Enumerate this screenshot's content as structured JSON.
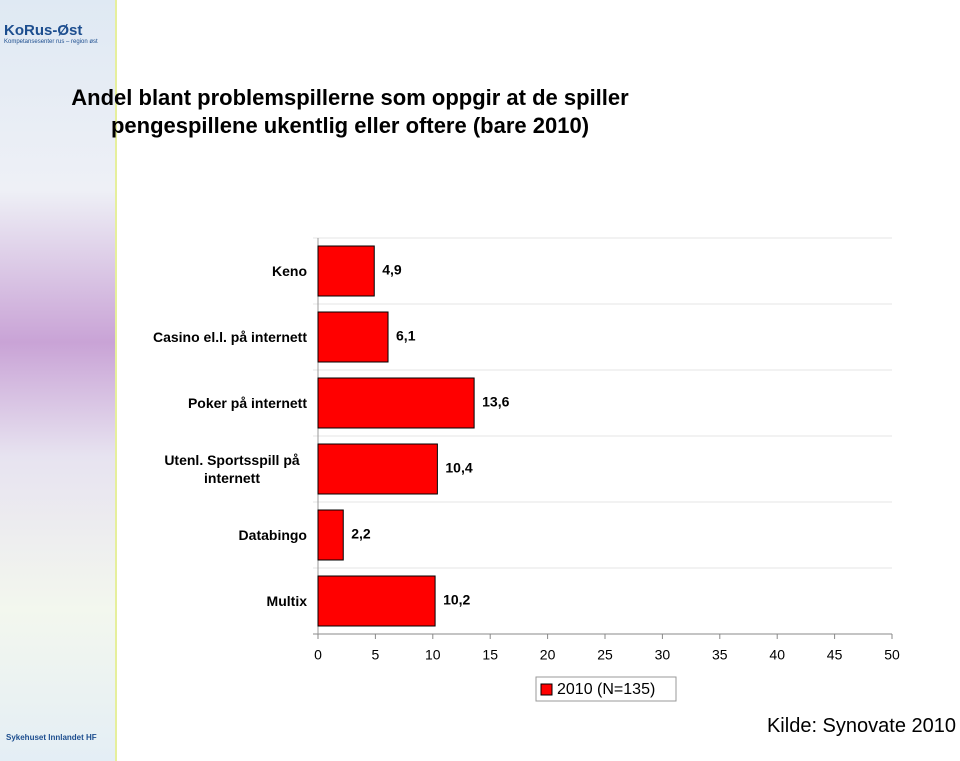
{
  "header_logo": {
    "name": "KoRus-Øst",
    "tagline": "Kompetansesenter rus – region øst"
  },
  "footer_logo": "Sykehuset Innlandet HF",
  "chart_data": {
    "type": "bar",
    "orientation": "horizontal",
    "title": "Andel blant problemspillerne som oppgir at de spiller pengespillene ukentlig eller oftere (bare 2010)",
    "source": "Kilde: Synovate 2010",
    "categories": [
      "Keno",
      "Casino el.l. på internett",
      "Poker på internett",
      "Utenl. Sportsspill på internett",
      "Databingo",
      "Multix"
    ],
    "series": [
      {
        "name": "2010 (N=135)",
        "color": "#ff0000",
        "values": [
          4.9,
          6.1,
          13.6,
          10.4,
          2.2,
          10.2
        ],
        "value_labels": [
          "4,9",
          "6,1",
          "13,6",
          "10,4",
          "2,2",
          "10,2"
        ]
      }
    ],
    "xlim": [
      0,
      50
    ],
    "xticks": [
      0,
      5,
      10,
      15,
      20,
      25,
      30,
      35,
      40,
      45,
      50
    ]
  }
}
